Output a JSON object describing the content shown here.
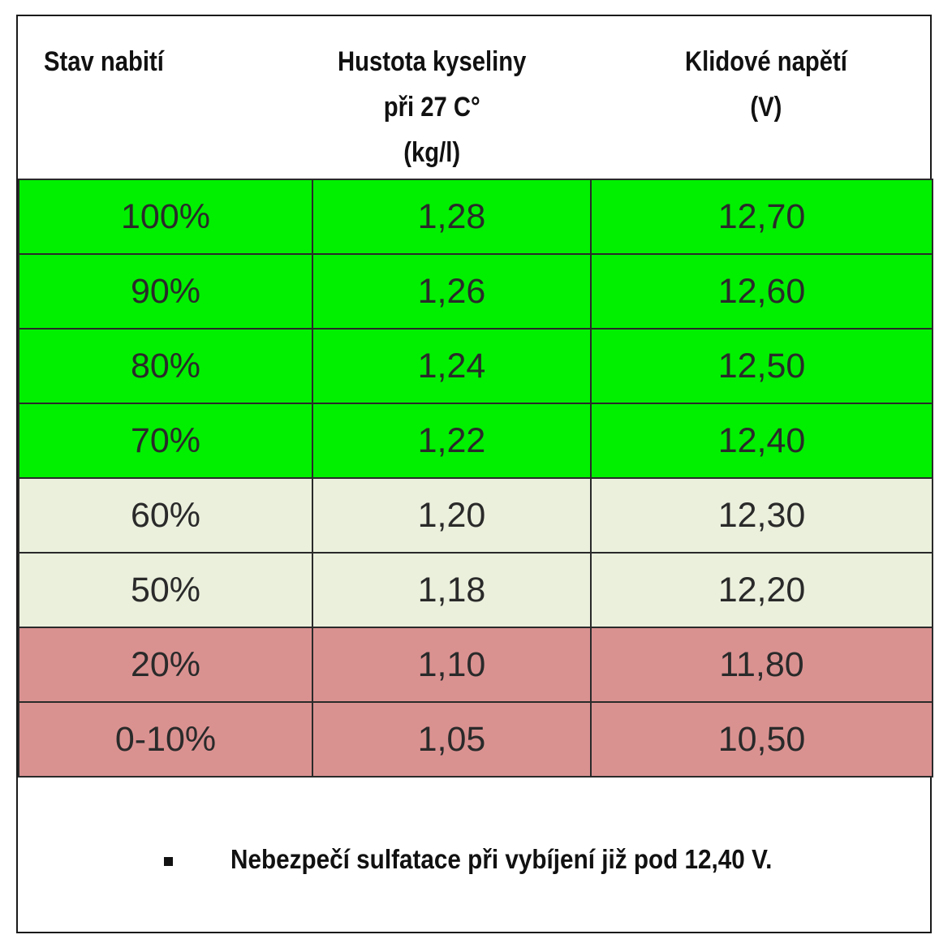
{
  "table": {
    "headers": [
      [
        "Stav nabití"
      ],
      [
        "Hustota kyseliny",
        "při 27 C°",
        "(kg/l)"
      ],
      [
        "Klidové napětí",
        "(V)"
      ]
    ],
    "rows": [
      {
        "charge": "100%",
        "density": "1,28",
        "voltage": "12,70",
        "status": "good"
      },
      {
        "charge": "90%",
        "density": "1,26",
        "voltage": "12,60",
        "status": "good"
      },
      {
        "charge": "80%",
        "density": "1,24",
        "voltage": "12,50",
        "status": "good"
      },
      {
        "charge": "70%",
        "density": "1,22",
        "voltage": "12,40",
        "status": "good"
      },
      {
        "charge": "60%",
        "density": "1,20",
        "voltage": "12,30",
        "status": "warning"
      },
      {
        "charge": "50%",
        "density": "1,18",
        "voltage": "12,20",
        "status": "warning"
      },
      {
        "charge": "20%",
        "density": "1,10",
        "voltage": "11,80",
        "status": "danger"
      },
      {
        "charge": "0-10%",
        "density": "1,05",
        "voltage": "10,50",
        "status": "danger"
      }
    ]
  },
  "colors": {
    "good": "#00f000",
    "warning": "#eaf0dc",
    "danger": "#da9291"
  },
  "note": "Nebezpečí sulfatace při vybíjení již pod 12,40 V."
}
